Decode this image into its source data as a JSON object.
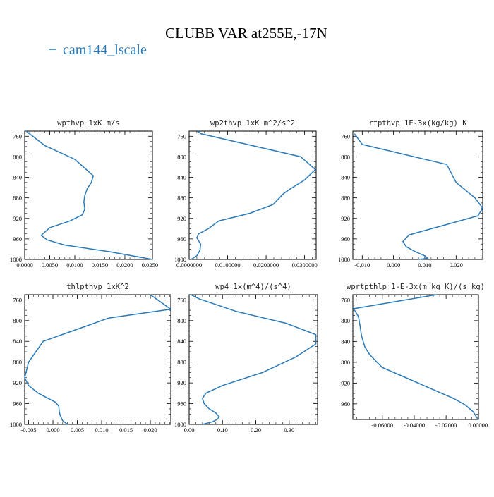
{
  "page": {
    "title": "CLUBB VAR at255E,-17N",
    "legend": {
      "label": "cam144_lscale",
      "color": "#2a7ab9"
    }
  },
  "chart_data": [
    {
      "type": "line",
      "title": "wpthvp  1xK m/s",
      "series": [
        {
          "name": "cam144_lscale",
          "color": "#2a7ab9",
          "x": [
            0.0003,
            0.004,
            0.01,
            0.0137,
            0.0133,
            0.0125,
            0.012,
            0.0118,
            0.012,
            0.0115,
            0.009,
            0.005,
            0.0033,
            0.0045,
            0.008,
            0.017,
            0.0255
          ],
          "y": [
            750,
            778,
            805,
            837,
            850,
            862,
            875,
            888,
            902,
            913,
            925,
            938,
            953,
            962,
            972,
            985,
            1000
          ]
        }
      ],
      "xticks": [
        0,
        0.005,
        0.01,
        0.015,
        0.02,
        0.025
      ],
      "xtick_labels": [
        "0.0000",
        "0.0050",
        "0.0100",
        "0.0150",
        "0.0200",
        "0.0250"
      ],
      "xlim": [
        0,
        0.0255
      ],
      "yticks": [
        760,
        800,
        840,
        880,
        920,
        960,
        1000
      ],
      "ylim": [
        1000,
        750
      ]
    },
    {
      "type": "line",
      "title": "wp2thvp  1xK m^2/s^2",
      "series": [
        {
          "name": "cam144_lscale",
          "color": "#2a7ab9",
          "x": [
            0.0022,
            0.003,
            0.029,
            0.0328,
            0.03,
            0.0262,
            0.0245,
            0.0218,
            0.0158,
            0.0077,
            0.005,
            0.0025,
            0.002,
            0.003,
            0.0028,
            0.002,
            0.0005
          ],
          "y": [
            750,
            755,
            800,
            825,
            845,
            863,
            872,
            893,
            910,
            925,
            940,
            950,
            958,
            970,
            982,
            993,
            1000
          ]
        }
      ],
      "xticks": [
        0,
        0.01,
        0.02,
        0.03
      ],
      "xtick_labels": [
        "0.0000000",
        "0.0100000",
        "0.0200000",
        "0.0300000"
      ],
      "xlim": [
        0,
        0.033
      ],
      "yticks": [
        760,
        800,
        840,
        880,
        920,
        960,
        1000
      ],
      "ylim": [
        1000,
        750
      ]
    },
    {
      "type": "line",
      "title": "rtpthvp  1E-3x(kg/kg) K",
      "series": [
        {
          "name": "cam144_lscale",
          "color": "#2a7ab9",
          "x": [
            -0.0125,
            -0.01,
            0.017,
            0.02,
            0.023,
            0.026,
            0.0285,
            0.027,
            0.005,
            0.003,
            0.004,
            0.007,
            0.01,
            0.011,
            0.008
          ],
          "y": [
            755,
            776,
            815,
            850,
            865,
            880,
            900,
            915,
            952,
            965,
            975,
            985,
            993,
            998,
            1000
          ]
        }
      ],
      "xticks": [
        -0.01,
        0,
        0.01,
        0.02
      ],
      "xtick_labels": [
        "-0.010",
        "0.000",
        "0.010",
        "0.020"
      ],
      "xlim": [
        -0.013,
        0.0285
      ],
      "yticks": [
        760,
        800,
        840,
        880,
        920,
        960,
        1000
      ],
      "ylim": [
        1000,
        750
      ]
    },
    {
      "type": "line",
      "title": "thlpthvp  1xK^2",
      "series": [
        {
          "name": "cam144_lscale",
          "color": "#2a7ab9",
          "x": [
            0.02,
            0.0242,
            0.0115,
            0.004,
            -0.002,
            -0.005,
            -0.0058,
            -0.005,
            -0.003,
            0.0005,
            0.0012,
            0.0013,
            0.0015,
            0.002,
            0.003
          ],
          "y": [
            750,
            778,
            795,
            820,
            840,
            880,
            910,
            925,
            940,
            957,
            965,
            975,
            983,
            993,
            1000
          ]
        }
      ],
      "xticks": [
        -0.005,
        0,
        0.005,
        0.01,
        0.015,
        0.02
      ],
      "xtick_labels": [
        "-0.005",
        "0.000",
        "0.005",
        "0.010",
        "0.015",
        "0.020"
      ],
      "xlim": [
        -0.0058,
        0.0242
      ],
      "yticks": [
        760,
        800,
        840,
        880,
        920,
        960,
        1000
      ],
      "ylim": [
        1000,
        750
      ]
    },
    {
      "type": "line",
      "title": "wp4  1x(m^4)/(s^4)",
      "series": [
        {
          "name": "cam144_lscale",
          "color": "#2a7ab9",
          "x": [
            0.005,
            0.03,
            0.14,
            0.29,
            0.38,
            0.38,
            0.32,
            0.22,
            0.1,
            0.05,
            0.04,
            0.045,
            0.06,
            0.08,
            0.09,
            0.085,
            0.07,
            0.04
          ],
          "y": [
            750,
            758,
            782,
            805,
            827,
            845,
            870,
            900,
            925,
            940,
            950,
            960,
            970,
            978,
            985,
            990,
            995,
            1000
          ]
        }
      ],
      "xticks": [
        0,
        0.1,
        0.2,
        0.3
      ],
      "xtick_labels": [
        "0.00",
        "0.10",
        "0.20",
        "0.30"
      ],
      "xlim": [
        0,
        0.385
      ],
      "yticks": [
        760,
        800,
        840,
        880,
        920,
        960,
        1000
      ],
      "ylim": [
        1000,
        750
      ]
    },
    {
      "type": "line",
      "title": "wprtpthlp  1-E-3x(m kg K)/(s kg)",
      "series": [
        {
          "name": "cam144_lscale",
          "color": "#2a7ab9",
          "x": [
            -0.026,
            -0.078,
            -0.075,
            -0.074,
            -0.073,
            -0.071,
            -0.068,
            -0.064,
            -0.06,
            -0.045,
            -0.03,
            -0.015,
            -0.008,
            -0.003,
            0.0
          ],
          "y": [
            750,
            777,
            792,
            810,
            830,
            850,
            865,
            878,
            890,
            910,
            930,
            950,
            962,
            975,
            990
          ]
        }
      ],
      "xticks": [
        -0.06,
        -0.04,
        -0.02,
        0
      ],
      "xtick_labels": [
        "-0.06000",
        "-0.04000",
        "-0.02000",
        "0.00000"
      ],
      "xlim": [
        -0.0785,
        0.0003
      ],
      "yticks": [
        760,
        800,
        840,
        880,
        920,
        960
      ],
      "ylim": [
        990,
        750
      ]
    }
  ]
}
